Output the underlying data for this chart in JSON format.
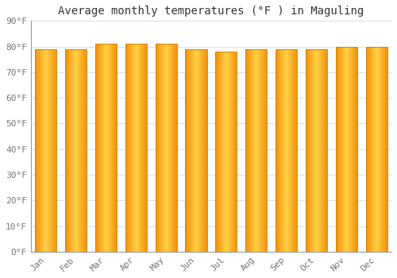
{
  "title": "Average monthly temperatures (°F ) in Maguling",
  "months": [
    "Jan",
    "Feb",
    "Mar",
    "Apr",
    "May",
    "Jun",
    "Jul",
    "Aug",
    "Sep",
    "Oct",
    "Nov",
    "Dec"
  ],
  "values": [
    79,
    79,
    81,
    81,
    81,
    79,
    78,
    79,
    79,
    79,
    80,
    80
  ],
  "ylim": [
    0,
    90
  ],
  "yticks": [
    0,
    10,
    20,
    30,
    40,
    50,
    60,
    70,
    80,
    90
  ],
  "bar_color_center": "#FFD045",
  "bar_color_edge": "#F0900A",
  "background_color": "#FFFFFF",
  "plot_bg_color": "#FFFFFF",
  "grid_color": "#DDDDDD",
  "title_fontsize": 10,
  "tick_fontsize": 8,
  "tick_color": "#777777",
  "bar_width": 0.72
}
